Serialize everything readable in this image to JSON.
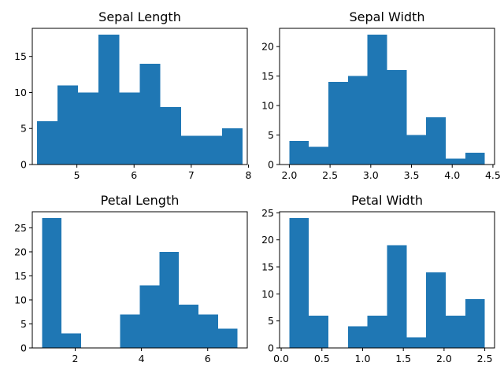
{
  "chart_data": [
    {
      "type": "bar",
      "subtype": "histogram",
      "title": "Sepal Length",
      "bin_edges": [
        4.3,
        4.66,
        5.02,
        5.38,
        5.74,
        6.1,
        6.46,
        6.82,
        7.18,
        7.54,
        7.9
      ],
      "values": [
        6,
        11,
        10,
        18,
        10,
        14,
        8,
        4,
        4,
        5
      ],
      "xlim": [
        4.22,
        7.98
      ],
      "ylim": [
        0,
        18.9
      ],
      "xticks": [
        5,
        6,
        7,
        8
      ],
      "xtick_labels": [
        "5",
        "6",
        "7",
        "8"
      ],
      "yticks": [
        0,
        5,
        10,
        15
      ],
      "ytick_labels": [
        "0",
        "5",
        "10",
        "15"
      ],
      "color": "#1f77b4"
    },
    {
      "type": "bar",
      "subtype": "histogram",
      "title": "Sepal Width",
      "bin_edges": [
        2.0,
        2.24,
        2.48,
        2.72,
        2.96,
        3.2,
        3.44,
        3.68,
        3.92,
        4.16,
        4.4
      ],
      "values": [
        4,
        3,
        14,
        15,
        22,
        16,
        5,
        8,
        1,
        2
      ],
      "xlim": [
        1.88,
        4.52
      ],
      "ylim": [
        0,
        23.1
      ],
      "xticks": [
        2.0,
        2.5,
        3.0,
        3.5,
        4.0,
        4.5
      ],
      "xtick_labels": [
        "2.0",
        "2.5",
        "3.0",
        "3.5",
        "4.0",
        "4.5"
      ],
      "yticks": [
        0,
        5,
        10,
        15,
        20
      ],
      "ytick_labels": [
        "0",
        "5",
        "10",
        "15",
        "20"
      ],
      "color": "#1f77b4"
    },
    {
      "type": "bar",
      "subtype": "histogram",
      "title": "Petal Length",
      "bin_edges": [
        1.0,
        1.59,
        2.18,
        2.77,
        3.36,
        3.95,
        4.54,
        5.13,
        5.72,
        6.31,
        6.9
      ],
      "values": [
        27,
        3,
        0,
        0,
        7,
        13,
        20,
        9,
        7,
        4
      ],
      "xlim": [
        0.705,
        7.195
      ],
      "ylim": [
        0,
        28.35
      ],
      "xticks": [
        2,
        4,
        6
      ],
      "xtick_labels": [
        "2",
        "4",
        "6"
      ],
      "yticks": [
        0,
        5,
        10,
        15,
        20,
        25
      ],
      "ytick_labels": [
        "0",
        "5",
        "10",
        "15",
        "20",
        "25"
      ],
      "color": "#1f77b4"
    },
    {
      "type": "bar",
      "subtype": "histogram",
      "title": "Petal Width",
      "bin_edges": [
        0.1,
        0.34,
        0.58,
        0.82,
        1.06,
        1.3,
        1.54,
        1.78,
        2.02,
        2.26,
        2.5
      ],
      "values": [
        24,
        6,
        0,
        4,
        6,
        19,
        2,
        14,
        6,
        9
      ],
      "xlim": [
        -0.02,
        2.62
      ],
      "ylim": [
        0,
        25.2
      ],
      "xticks": [
        0.0,
        0.5,
        1.0,
        1.5,
        2.0,
        2.5
      ],
      "xtick_labels": [
        "0.0",
        "0.5",
        "1.0",
        "1.5",
        "2.0",
        "2.5"
      ],
      "yticks": [
        0,
        5,
        10,
        15,
        20,
        25
      ],
      "ytick_labels": [
        "0",
        "5",
        "10",
        "15",
        "20",
        "25"
      ],
      "color": "#1f77b4"
    }
  ]
}
